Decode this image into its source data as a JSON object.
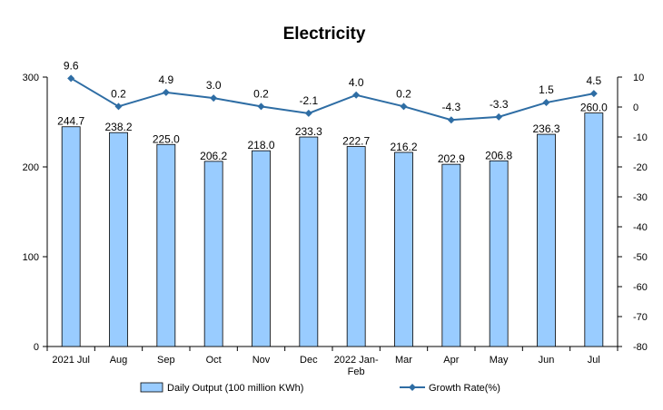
{
  "chart_data": {
    "type": "bar+line",
    "title": "Electricity",
    "categories": [
      "2021 Jul",
      "Aug",
      "Sep",
      "Oct",
      "Nov",
      "Dec",
      "2022 Jan-\nFeb",
      "Mar",
      "Apr",
      "May",
      "Jun",
      "Jul"
    ],
    "series": [
      {
        "name": "Daily Output (100 million KWh)",
        "type": "bar",
        "axis": "left",
        "color": "#99ccff",
        "values": [
          244.7,
          238.2,
          225.0,
          206.2,
          218.0,
          233.3,
          222.7,
          216.2,
          202.9,
          206.8,
          236.3,
          260.0
        ],
        "labels": [
          "244.7",
          "238.2",
          "225.0",
          "206.2",
          "218.0",
          "233.3",
          "222.7",
          "216.2",
          "202.9",
          "206.8",
          "236.3",
          "260.0"
        ]
      },
      {
        "name": "Growth Rate(%)",
        "type": "line",
        "axis": "right",
        "color": "#2e6da4",
        "values": [
          9.6,
          0.2,
          4.9,
          3.0,
          0.2,
          -2.1,
          4.0,
          0.2,
          -4.3,
          -3.3,
          1.5,
          4.5
        ],
        "labels": [
          "9.6",
          "0.2",
          "4.9",
          "3.0",
          "0.2",
          "-2.1",
          "4.0",
          "0.2",
          "-4.3",
          "-3.3",
          "1.5",
          "4.5"
        ]
      }
    ],
    "y_left": {
      "min": 0,
      "max": 300,
      "ticks": [
        0,
        100,
        200,
        300
      ]
    },
    "y_right": {
      "min": -80,
      "max": 10,
      "ticks": [
        10,
        0,
        -10,
        -20,
        -30,
        -40,
        -50,
        -60,
        -70,
        -80
      ]
    },
    "legend_position": "bottom",
    "grid": false
  }
}
